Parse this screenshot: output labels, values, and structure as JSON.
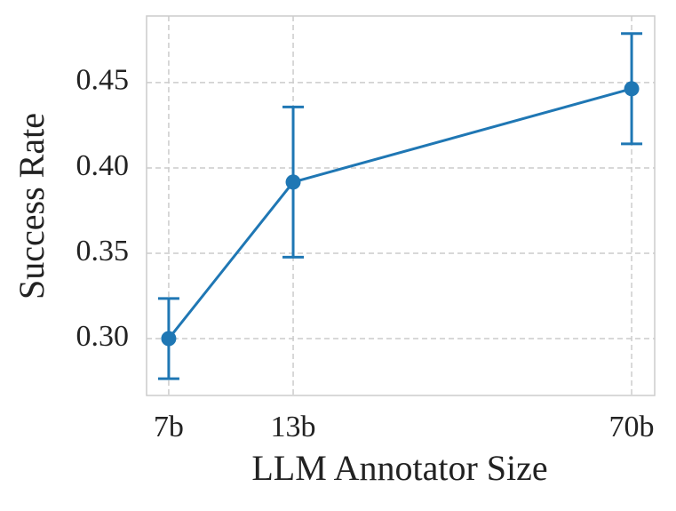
{
  "chart_data": {
    "type": "line",
    "x_label": "LLM Annotator Size",
    "y_label": "Success Rate",
    "x": [
      7,
      13,
      70
    ],
    "series": [
      {
        "color": "#1f77b4",
        "values": [
          0.3,
          0.3917,
          0.4464
        ],
        "errors": [
          0.0235,
          0.044,
          0.0323
        ]
      }
    ],
    "xlog": true,
    "xlim": [
      6.27,
      78.5
    ],
    "xticks": [
      {
        "value": 7,
        "label": "7b"
      },
      {
        "value": 13,
        "label": "13b"
      },
      {
        "value": 70,
        "label": "70b"
      }
    ],
    "ylim": [
      0.2667,
      0.489
    ],
    "yticks": [
      {
        "value": 0.3,
        "label": "0.30"
      },
      {
        "value": 0.35,
        "label": "0.35"
      },
      {
        "value": 0.4,
        "label": "0.40"
      },
      {
        "value": 0.45,
        "label": "0.45"
      }
    ],
    "grid": true
  }
}
